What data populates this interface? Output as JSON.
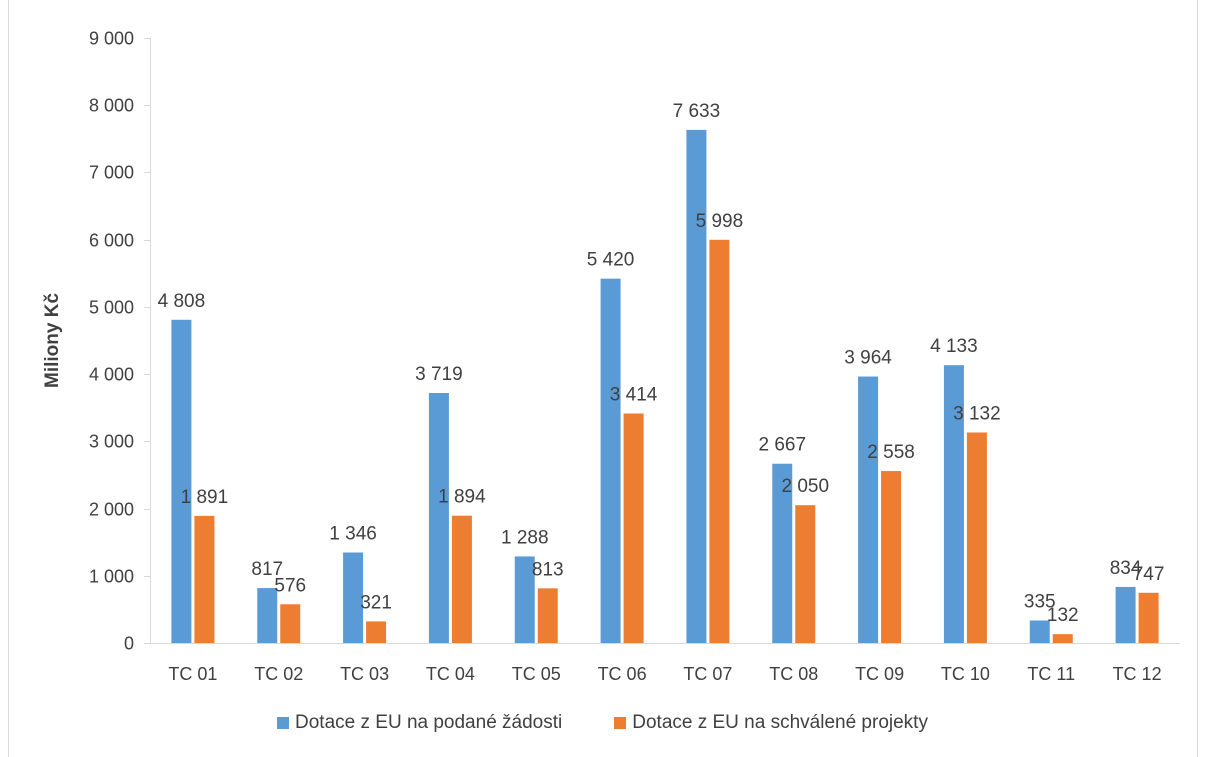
{
  "colors": {
    "series1": "#5B9BD5",
    "series2": "#ED7D31",
    "axis": "#D9D9D9",
    "text": "#404040"
  },
  "chart_data": {
    "type": "bar",
    "title": "",
    "xlabel": "",
    "ylabel": "Miliony Kč",
    "ylim": [
      0,
      9000
    ],
    "yticks": [
      0,
      1000,
      2000,
      3000,
      4000,
      5000,
      6000,
      7000,
      8000,
      9000
    ],
    "ytick_labels": [
      "0",
      "1 000",
      "2 000",
      "3 000",
      "4 000",
      "5 000",
      "6 000",
      "7 000",
      "8 000",
      "9 000"
    ],
    "grid": false,
    "legend_position": "bottom",
    "categories": [
      "TC 01",
      "TC 02",
      "TC 03",
      "TC 04",
      "TC 05",
      "TC 06",
      "TC 07",
      "TC 08",
      "TC 09",
      "TC 10",
      "TC 11",
      "TC 12"
    ],
    "series": [
      {
        "name": "Dotace z EU na podané žádosti",
        "values": [
          4808,
          817,
          1346,
          3719,
          1288,
          5420,
          7633,
          2667,
          3964,
          4133,
          335,
          834
        ],
        "labels": [
          "4 808",
          "817",
          "1 346",
          "3 719",
          "1 288",
          "5 420",
          "7 633",
          "2 667",
          "3 964",
          "4 133",
          "335",
          "834"
        ]
      },
      {
        "name": "Dotace z EU na schválené projekty",
        "values": [
          1891,
          576,
          321,
          1894,
          813,
          3414,
          5998,
          2050,
          2558,
          3132,
          132,
          747
        ],
        "labels": [
          "1 891",
          "576",
          "321",
          "1 894",
          "813",
          "3 414",
          "5 998",
          "2 050",
          "2 558",
          "3 132",
          "132",
          "747"
        ]
      }
    ]
  }
}
